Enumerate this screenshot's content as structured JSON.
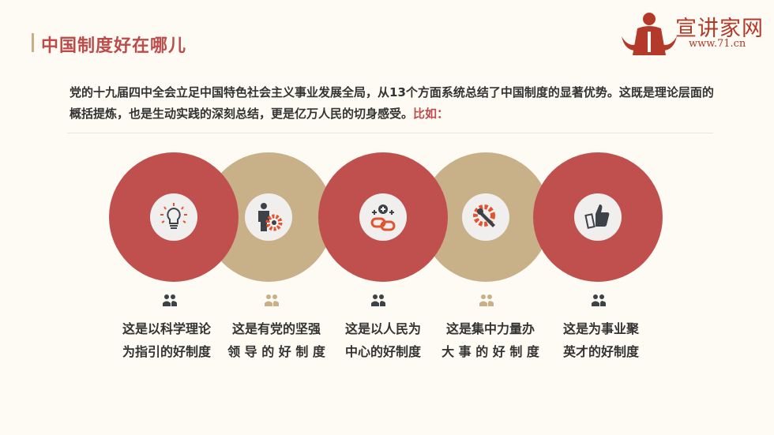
{
  "header": {
    "title": "中国制度好在哪儿"
  },
  "logo": {
    "text": "宣讲家网",
    "url": "www.71.cn"
  },
  "intro": {
    "text": "党的十九届四中全会立足中国特色社会主义事业发展全局，从13个方面系统总结了中国制度的显著优势。这既是理论层面的概括提炼，也是生动实践的深刻总结，更是亿万人民的切身感受。",
    "highlight": "比如："
  },
  "colors": {
    "red": "#c0504d",
    "tan": "#c8b189",
    "dark": "#3d4148",
    "accent": "#e2542f"
  },
  "items": [
    {
      "icon": "lightbulb-icon",
      "color": "red",
      "line1": "这是以科学理论",
      "line2": "为指引的好制度"
    },
    {
      "icon": "businessman-gear-icon",
      "color": "tan",
      "line1": "这是有党的坚强",
      "line2": "领 导 的 好 制 度"
    },
    {
      "icon": "link-plus-icon",
      "color": "red",
      "line1": "这是以人民为",
      "line2": "中心的好制度"
    },
    {
      "icon": "gear-wrench-icon",
      "color": "tan",
      "line1": "这是集中力量办",
      "line2": "大 事 的 好 制 度"
    },
    {
      "icon": "thumbs-up-icon",
      "color": "red",
      "line1": "这是为事业聚",
      "line2": "英才的好制度"
    }
  ]
}
